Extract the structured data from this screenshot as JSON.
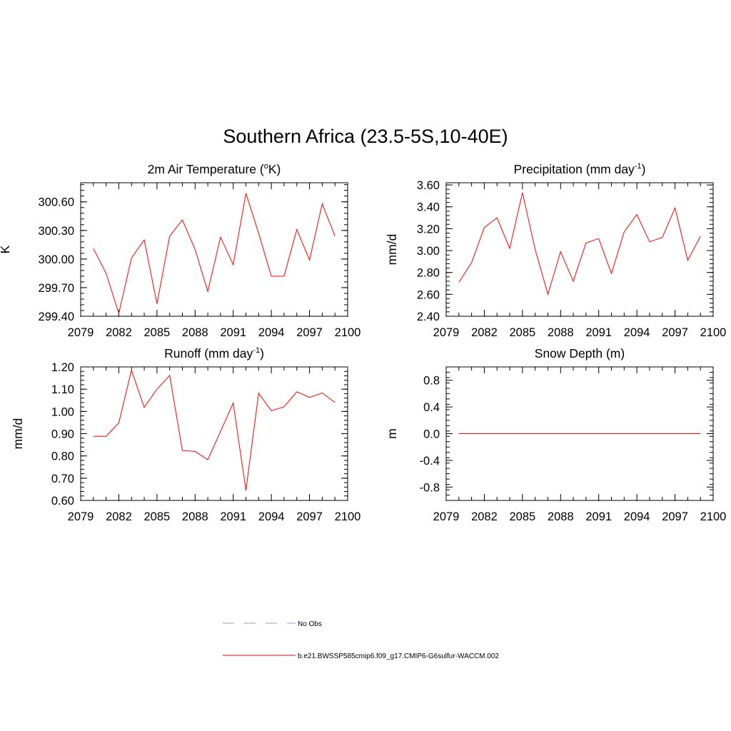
{
  "figure": {
    "title": "Southern Africa (23.5-5S,10-40E)"
  },
  "colors": {
    "series": "#ff0000",
    "obs": "#9999dd",
    "axis": "#000000"
  },
  "chart_data": [
    {
      "id": "temperature",
      "type": "line",
      "title": "2m Air Temperature (",
      "title_sup": "o",
      "title_after": "K)",
      "ylabel": "K",
      "xlim": [
        2079,
        2100
      ],
      "ylim": [
        299.4,
        300.8
      ],
      "xticks": [
        2079,
        2082,
        2085,
        2088,
        2091,
        2094,
        2097,
        2100
      ],
      "yticks": [
        299.4,
        299.7,
        300.0,
        300.3,
        300.6
      ],
      "ytick_labels": [
        "299.40",
        "299.70",
        "300.00",
        "300.30",
        "300.60"
      ],
      "x": [
        2080,
        2081,
        2082,
        2083,
        2084,
        2085,
        2086,
        2087,
        2088,
        2089,
        2090,
        2091,
        2092,
        2093,
        2094,
        2095,
        2096,
        2097,
        2098,
        2099
      ],
      "values": [
        300.11,
        299.85,
        299.43,
        300.01,
        300.2,
        299.53,
        300.24,
        300.41,
        300.1,
        299.66,
        300.23,
        299.94,
        300.69,
        300.27,
        299.82,
        299.82,
        300.31,
        299.99,
        300.58,
        300.24
      ]
    },
    {
      "id": "precipitation",
      "type": "line",
      "title": "Precipitation (mm day",
      "title_sup": "-1",
      "title_after": ")",
      "ylabel": "mm/d",
      "xlim": [
        2079,
        2100
      ],
      "ylim": [
        2.4,
        3.62
      ],
      "xticks": [
        2079,
        2082,
        2085,
        2088,
        2091,
        2094,
        2097,
        2100
      ],
      "yticks": [
        2.4,
        2.6,
        2.8,
        3.0,
        3.2,
        3.4,
        3.6
      ],
      "ytick_labels": [
        "2.40",
        "2.60",
        "2.80",
        "3.00",
        "3.20",
        "3.40",
        "3.60"
      ],
      "x": [
        2080,
        2081,
        2082,
        2083,
        2084,
        2085,
        2086,
        2087,
        2088,
        2089,
        2090,
        2091,
        2092,
        2093,
        2094,
        2095,
        2096,
        2097,
        2098,
        2099
      ],
      "values": [
        2.71,
        2.89,
        3.21,
        3.3,
        3.02,
        3.53,
        3.01,
        2.6,
        2.99,
        2.72,
        3.07,
        3.11,
        2.79,
        3.17,
        3.33,
        3.08,
        3.12,
        3.39,
        2.91,
        3.13
      ]
    },
    {
      "id": "runoff",
      "type": "line",
      "title": "Runoff (mm day",
      "title_sup": "-1",
      "title_after": ")",
      "ylabel": "mm/d",
      "xlim": [
        2079,
        2100
      ],
      "ylim": [
        0.6,
        1.2
      ],
      "xticks": [
        2079,
        2082,
        2085,
        2088,
        2091,
        2094,
        2097,
        2100
      ],
      "yticks": [
        0.6,
        0.7,
        0.8,
        0.9,
        1.0,
        1.1,
        1.2
      ],
      "ytick_labels": [
        "0.60",
        "0.70",
        "0.80",
        "0.90",
        "1.00",
        "1.10",
        "1.20"
      ],
      "x": [
        2080,
        2081,
        2082,
        2083,
        2084,
        2085,
        2086,
        2087,
        2088,
        2089,
        2090,
        2091,
        2092,
        2093,
        2094,
        2095,
        2096,
        2097,
        2098,
        2099
      ],
      "values": [
        0.888,
        0.888,
        0.948,
        1.185,
        1.018,
        1.1,
        1.162,
        0.824,
        0.82,
        0.783,
        0.91,
        1.038,
        0.645,
        1.082,
        1.003,
        1.021,
        1.088,
        1.063,
        1.083,
        1.04
      ]
    },
    {
      "id": "snow",
      "type": "line",
      "title": "Snow Depth (m)",
      "title_sup": "",
      "title_after": "",
      "ylabel": "m",
      "xlim": [
        2079,
        2100
      ],
      "ylim": [
        -1.0,
        1.0
      ],
      "xticks": [
        2079,
        2082,
        2085,
        2088,
        2091,
        2094,
        2097,
        2100
      ],
      "yticks": [
        -0.8,
        -0.4,
        0.0,
        0.4,
        0.8
      ],
      "ytick_labels": [
        "-0.8",
        "-0.4",
        "0.0",
        "0.4",
        "0.8"
      ],
      "x": [
        2080,
        2081,
        2082,
        2083,
        2084,
        2085,
        2086,
        2087,
        2088,
        2089,
        2090,
        2091,
        2092,
        2093,
        2094,
        2095,
        2096,
        2097,
        2098,
        2099
      ],
      "values": [
        0,
        0,
        0,
        0,
        0,
        0,
        0,
        0,
        0,
        0,
        0,
        0,
        0,
        0,
        0,
        0,
        0,
        0,
        0,
        0
      ]
    }
  ],
  "legend": {
    "items": [
      {
        "label": "No Obs",
        "style": "dashed",
        "color": "#9999dd"
      },
      {
        "label": "b.e21.BWSSP585cmip6.f09_g17.CMIP6-G6sulfur-WACCM.002",
        "style": "solid",
        "color": "#ff0000"
      }
    ]
  }
}
